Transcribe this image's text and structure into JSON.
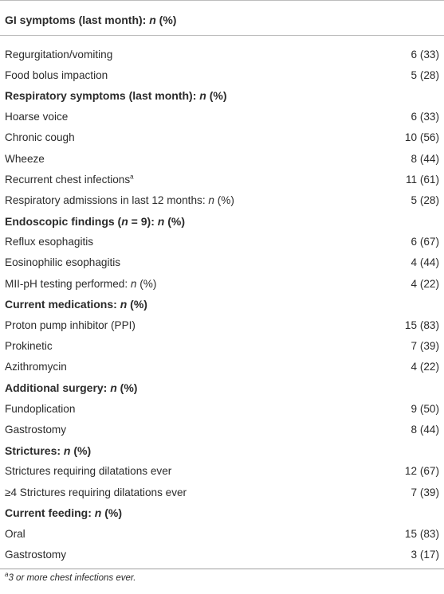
{
  "header": {
    "title_prefix": "GI symptoms (last month): ",
    "title_n": "n",
    "title_suffix": " (%)"
  },
  "rows": [
    {
      "type": "item",
      "label": "Regurgitation/vomiting",
      "value": "6 (33)"
    },
    {
      "type": "item",
      "label": "Food bolus impaction",
      "value": "5 (28)"
    },
    {
      "type": "section",
      "prefix": "Respiratory symptoms (last month): ",
      "n": "n",
      "suffix": " (%)"
    },
    {
      "type": "item",
      "label": "Hoarse voice",
      "value": "6 (33)"
    },
    {
      "type": "item",
      "label": "Chronic cough",
      "value": "10 (56)"
    },
    {
      "type": "item",
      "label": "Wheeze",
      "value": "8 (44)"
    },
    {
      "type": "item",
      "label": "Recurrent chest infections",
      "sup": "a",
      "value": "11 (61)"
    },
    {
      "type": "item",
      "label": "Respiratory admissions in last 12 months: ",
      "label_n": "n",
      "label_suffix": " (%)",
      "value": "5 (28)"
    },
    {
      "type": "section",
      "prefix": "Endoscopic findings (",
      "n": "n",
      "suffix": " = 9): ",
      "n2": "n",
      "suffix2": " (%)"
    },
    {
      "type": "item",
      "label": "Reflux esophagitis",
      "value": "6 (67)"
    },
    {
      "type": "item",
      "label": "Eosinophilic esophagitis",
      "value": "4 (44)"
    },
    {
      "type": "item",
      "label": "MII-pH testing performed: ",
      "label_n": "n",
      "label_suffix": " (%)",
      "value": "4 (22)"
    },
    {
      "type": "section",
      "prefix": "Current medications: ",
      "n": "n",
      "suffix": " (%)"
    },
    {
      "type": "item",
      "label": "Proton pump inhibitor (PPI)",
      "value": "15 (83)"
    },
    {
      "type": "item",
      "label": "Prokinetic",
      "value": "7 (39)"
    },
    {
      "type": "item",
      "label": "Azithromycin",
      "value": "4 (22)"
    },
    {
      "type": "section",
      "prefix": "Additional surgery: ",
      "n": "n",
      "suffix": " (%)"
    },
    {
      "type": "item",
      "label": "Fundoplication",
      "value": "9 (50)"
    },
    {
      "type": "item",
      "label": "Gastrostomy",
      "value": "8 (44)"
    },
    {
      "type": "section",
      "prefix": "Strictures: ",
      "n": "n",
      "suffix": " (%)"
    },
    {
      "type": "item",
      "label": "Strictures requiring dilatations ever",
      "value": "12 (67)"
    },
    {
      "type": "item",
      "label": "≥4 Strictures requiring dilatations ever",
      "value": "7 (39)"
    },
    {
      "type": "section",
      "prefix": "Current feeding: ",
      "n": "n",
      "suffix": " (%)"
    },
    {
      "type": "item",
      "label": "Oral",
      "value": "15 (83)"
    },
    {
      "type": "item",
      "label": "Gastrostomy",
      "value": "3 (17)"
    }
  ],
  "footnote": {
    "sup": "a",
    "text": "3 or more chest infections ever."
  }
}
